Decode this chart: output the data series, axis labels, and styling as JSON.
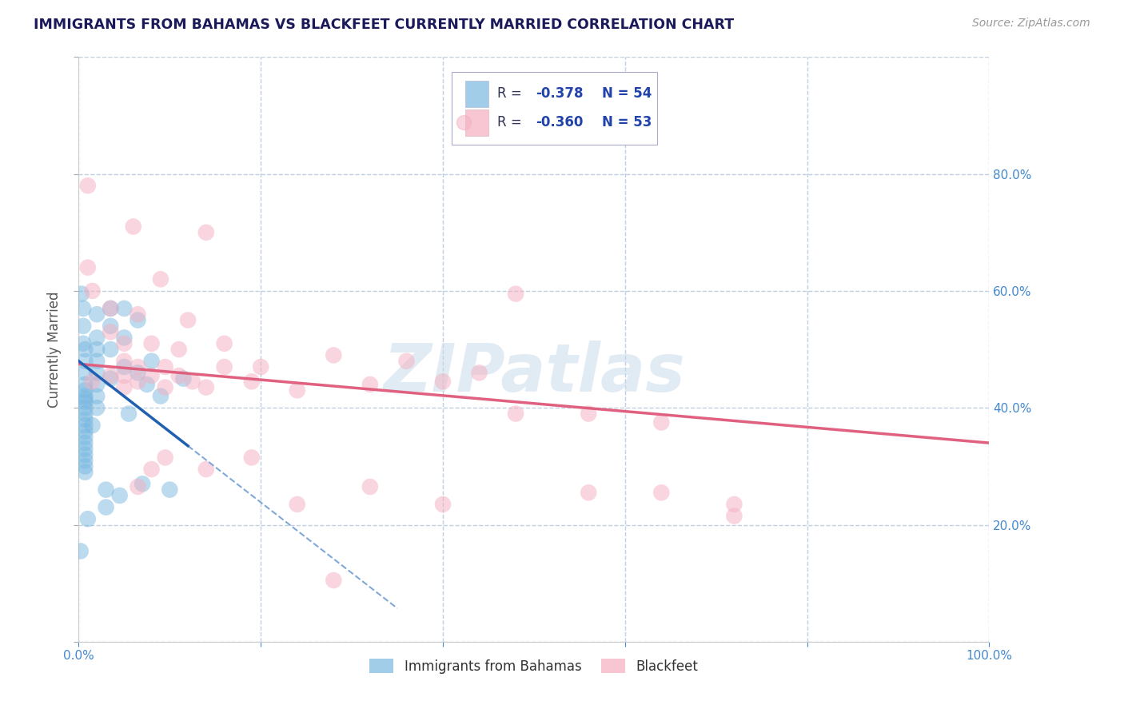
{
  "title": "IMMIGRANTS FROM BAHAMAS VS BLACKFEET CURRENTLY MARRIED CORRELATION CHART",
  "source_text": "Source: ZipAtlas.com",
  "ylabel": "Currently Married",
  "r_label_blue": "R = -0.378",
  "n_label_blue": "N = 54",
  "r_label_pink": "R = -0.360",
  "n_label_pink": "N = 53",
  "xlim": [
    0.0,
    1.0
  ],
  "ylim": [
    0.0,
    1.0
  ],
  "watermark": "ZIPatlas",
  "blue_color": "#7ab8e0",
  "pink_color": "#f5afc0",
  "blue_line_solid_color": "#2060b0",
  "blue_line_dash_color": "#80a8d8",
  "pink_line_color": "#e06080",
  "blue_scatter": [
    [
      0.005,
      0.54
    ],
    [
      0.005,
      0.57
    ],
    [
      0.005,
      0.51
    ],
    [
      0.007,
      0.5
    ],
    [
      0.007,
      0.48
    ],
    [
      0.007,
      0.46
    ],
    [
      0.007,
      0.44
    ],
    [
      0.007,
      0.43
    ],
    [
      0.007,
      0.42
    ],
    [
      0.007,
      0.415
    ],
    [
      0.007,
      0.41
    ],
    [
      0.007,
      0.4
    ],
    [
      0.007,
      0.39
    ],
    [
      0.007,
      0.38
    ],
    [
      0.007,
      0.37
    ],
    [
      0.007,
      0.36
    ],
    [
      0.007,
      0.35
    ],
    [
      0.007,
      0.34
    ],
    [
      0.007,
      0.33
    ],
    [
      0.007,
      0.32
    ],
    [
      0.007,
      0.31
    ],
    [
      0.007,
      0.3
    ],
    [
      0.007,
      0.29
    ],
    [
      0.02,
      0.56
    ],
    [
      0.02,
      0.52
    ],
    [
      0.02,
      0.5
    ],
    [
      0.02,
      0.48
    ],
    [
      0.02,
      0.46
    ],
    [
      0.02,
      0.44
    ],
    [
      0.02,
      0.42
    ],
    [
      0.02,
      0.4
    ],
    [
      0.035,
      0.57
    ],
    [
      0.035,
      0.54
    ],
    [
      0.035,
      0.5
    ],
    [
      0.035,
      0.45
    ],
    [
      0.05,
      0.57
    ],
    [
      0.05,
      0.52
    ],
    [
      0.05,
      0.47
    ],
    [
      0.065,
      0.55
    ],
    [
      0.065,
      0.46
    ],
    [
      0.08,
      0.48
    ],
    [
      0.03,
      0.26
    ],
    [
      0.03,
      0.23
    ],
    [
      0.045,
      0.25
    ],
    [
      0.07,
      0.27
    ],
    [
      0.1,
      0.26
    ],
    [
      0.01,
      0.21
    ],
    [
      0.015,
      0.37
    ],
    [
      0.055,
      0.39
    ],
    [
      0.002,
      0.155
    ],
    [
      0.075,
      0.44
    ],
    [
      0.09,
      0.42
    ],
    [
      0.115,
      0.45
    ],
    [
      0.003,
      0.595
    ]
  ],
  "pink_scatter": [
    [
      0.01,
      0.78
    ],
    [
      0.06,
      0.71
    ],
    [
      0.14,
      0.7
    ],
    [
      0.01,
      0.64
    ],
    [
      0.09,
      0.62
    ],
    [
      0.015,
      0.6
    ],
    [
      0.035,
      0.57
    ],
    [
      0.065,
      0.56
    ],
    [
      0.12,
      0.55
    ],
    [
      0.035,
      0.53
    ],
    [
      0.05,
      0.51
    ],
    [
      0.08,
      0.51
    ],
    [
      0.11,
      0.5
    ],
    [
      0.05,
      0.48
    ],
    [
      0.065,
      0.47
    ],
    [
      0.095,
      0.47
    ],
    [
      0.16,
      0.47
    ],
    [
      0.035,
      0.455
    ],
    [
      0.05,
      0.455
    ],
    [
      0.08,
      0.455
    ],
    [
      0.11,
      0.455
    ],
    [
      0.015,
      0.445
    ],
    [
      0.065,
      0.445
    ],
    [
      0.125,
      0.445
    ],
    [
      0.05,
      0.435
    ],
    [
      0.095,
      0.435
    ],
    [
      0.14,
      0.435
    ],
    [
      0.19,
      0.445
    ],
    [
      0.24,
      0.43
    ],
    [
      0.32,
      0.44
    ],
    [
      0.4,
      0.445
    ],
    [
      0.48,
      0.39
    ],
    [
      0.56,
      0.39
    ],
    [
      0.64,
      0.375
    ],
    [
      0.48,
      0.595
    ],
    [
      0.32,
      0.265
    ],
    [
      0.4,
      0.235
    ],
    [
      0.56,
      0.255
    ],
    [
      0.64,
      0.255
    ],
    [
      0.72,
      0.235
    ],
    [
      0.24,
      0.235
    ],
    [
      0.16,
      0.51
    ],
    [
      0.28,
      0.49
    ],
    [
      0.36,
      0.48
    ],
    [
      0.2,
      0.47
    ],
    [
      0.44,
      0.46
    ],
    [
      0.28,
      0.105
    ],
    [
      0.08,
      0.295
    ],
    [
      0.14,
      0.295
    ],
    [
      0.19,
      0.315
    ],
    [
      0.065,
      0.265
    ],
    [
      0.095,
      0.315
    ],
    [
      0.72,
      0.215
    ]
  ],
  "background_color": "#ffffff",
  "grid_color": "#c0d0e0",
  "title_color": "#1a1a5a",
  "ylabel_color": "#555555",
  "tick_label_color": "#4488cc",
  "legend_r_color": "#2244aa"
}
